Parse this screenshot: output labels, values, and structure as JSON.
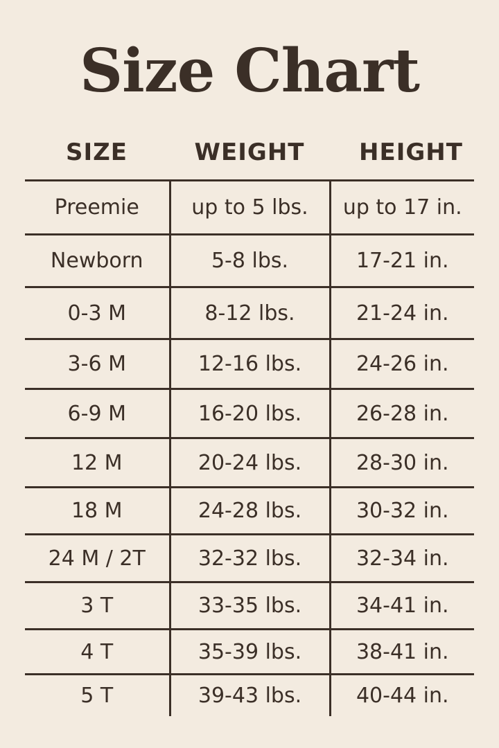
{
  "title": "Size Chart",
  "columns": [
    "SIZE",
    "WEIGHT",
    "HEIGHT"
  ],
  "rows": [
    [
      "Preemie",
      "up to 5 lbs.",
      "up to 17 in."
    ],
    [
      "Newborn",
      "5-8 lbs.",
      "17-21 in."
    ],
    [
      "0-3 M",
      "8-12 lbs.",
      "21-24 in."
    ],
    [
      "3-6 M",
      "12-16 lbs.",
      "24-26 in."
    ],
    [
      "6-9 M",
      "16-20 lbs.",
      "26-28 in."
    ],
    [
      "12 M",
      "20-24 lbs.",
      "28-30 in."
    ],
    [
      "18 M",
      "24-28 lbs.",
      "30-32 in."
    ],
    [
      "24 M / 2T",
      "32-32 lbs.",
      "32-34 in."
    ],
    [
      "3 T",
      "33-35 lbs.",
      "34-41 in."
    ],
    [
      "4 T",
      "35-39 lbs.",
      "38-41 in."
    ],
    [
      "5 T",
      "39-43 lbs.",
      "40-44 in."
    ]
  ],
  "colors": {
    "background": "#f3ebe0",
    "text": "#3b2f27"
  }
}
